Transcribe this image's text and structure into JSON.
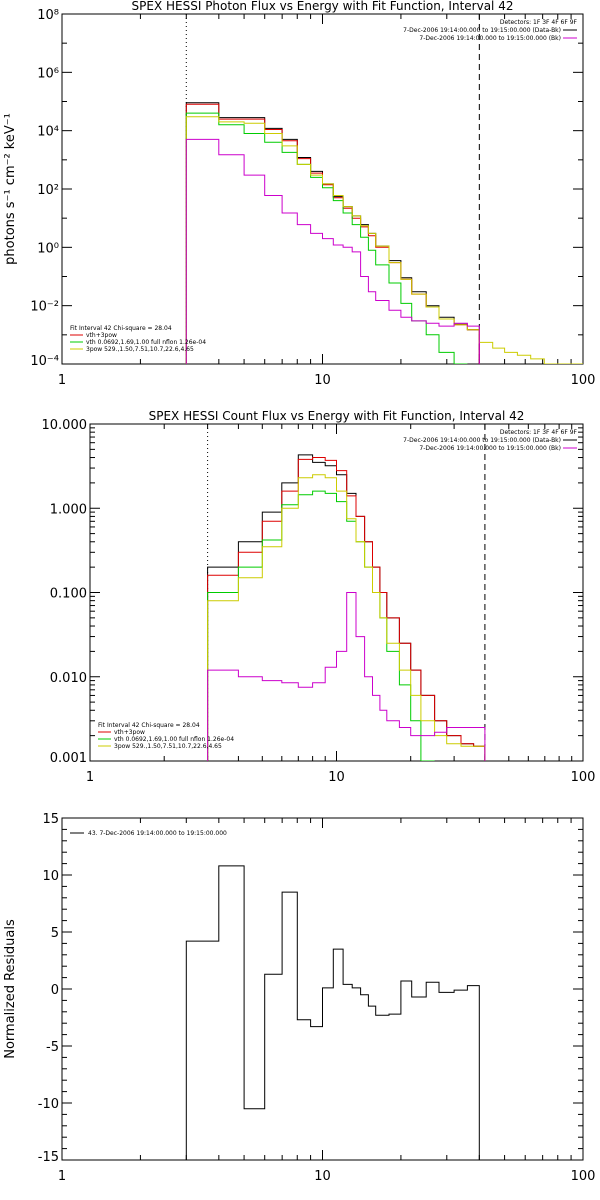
{
  "chart_data": [
    {
      "type": "line",
      "title": "SPEX HESSI Photon Flux vs Energy with Fit Function, Interval 42",
      "ylabel": "photons s⁻¹ cm⁻² keV⁻¹",
      "xscale": "log",
      "yscale": "log",
      "xlim": [
        1,
        100
      ],
      "ylim": [
        0.0001,
        100000000
      ],
      "xticks": [
        1,
        10,
        100
      ],
      "xtick_labels": [
        "1",
        "10",
        "100"
      ],
      "yticks": [
        0.0001,
        0.01,
        1,
        100,
        10000,
        1000000,
        100000000
      ],
      "ytick_labels": [
        "10⁻⁴",
        "10⁻²",
        "10⁰",
        "10²",
        "10⁴",
        "10⁶",
        "10⁸"
      ],
      "vlines": [
        {
          "x": 3.0,
          "style": "dotted"
        },
        {
          "x": 40.0,
          "style": "dashed"
        }
      ],
      "legend_topright": [
        {
          "text": "Detectors: 1F 3F 4F 6F 9F",
          "color": null
        },
        {
          "text": "7-Dec-2006 19:14:00.000 to 19:15:00.000 (Data-Bk)",
          "color": "#000000"
        },
        {
          "text": "7-Dec-2006 19:14:00.000 to 19:15:00.000 (Bk)",
          "color": "#cc00cc"
        }
      ],
      "legend_bottomleft": [
        {
          "text": "Fit Interval 42    Chi-square = 28.04",
          "color": null
        },
        {
          "text": "vth+3pow",
          "color": "#dd0000"
        },
        {
          "text": "vth 0.0692,1.69,1.00  full nflon 1.26e-04",
          "color": "#00cc00"
        },
        {
          "text": "3pow 529.,1.50,7.51,10.7,22.6,4.65",
          "color": "#cccc00"
        }
      ],
      "edges": [
        3.0,
        4.0,
        5.0,
        6.0,
        7.0,
        8.0,
        9.0,
        10.0,
        11.0,
        12.0,
        13.0,
        14.0,
        15.0,
        16.0,
        18.0,
        20.0,
        22.0,
        25.0,
        28.0,
        32.0,
        36.0,
        40.0,
        45.0,
        50.0,
        56.0,
        63.0,
        71.0,
        80.0,
        90.0,
        100.0
      ],
      "series": [
        {
          "color": "#000000",
          "values": [
            90000,
            28000,
            28000,
            12000,
            5000,
            1200,
            400,
            150,
            55,
            25,
            12,
            6,
            3,
            1.1,
            0.35,
            0.09,
            0.03,
            0.01,
            0.004,
            0.0023,
            0.0015
          ]
        },
        {
          "color": "#dd0000",
          "values": [
            80000,
            25000,
            25000,
            11000,
            4500,
            1100,
            350,
            140,
            50,
            22,
            10,
            5,
            2.5,
            1.0,
            0.3,
            0.08,
            0.025,
            0.009,
            0.0035,
            0.0022,
            0.0015
          ]
        },
        {
          "color": "#00cc00",
          "values": [
            40000,
            16000,
            8000,
            4000,
            1800,
            700,
            250,
            110,
            40,
            15,
            6,
            2.2,
            0.8,
            0.25,
            0.06,
            0.012,
            0.003,
            0.001,
            0.00025,
            0.0001,
            null
          ]
        },
        {
          "color": "#cccc00",
          "values": [
            30000,
            20000,
            18000,
            8000,
            3000,
            700,
            300,
            150,
            60,
            25,
            12,
            5.5,
            3,
            1.1,
            0.3,
            0.08,
            0.025,
            0.009,
            0.0035,
            0.0022,
            0.0015,
            0.00055,
            0.00035,
            0.00025,
            0.0002,
            0.00015,
            0.0001,
            8e-05,
            5e-05
          ]
        },
        {
          "color": "#cc00cc",
          "values": [
            5000,
            1500,
            300,
            60,
            15,
            6,
            3,
            2,
            1.2,
            1.0,
            0.7,
            0.1,
            0.03,
            0.015,
            0.007,
            0.004,
            0.003,
            0.0025,
            0.002,
            0.0025,
            0.002
          ]
        }
      ]
    },
    {
      "type": "line",
      "title": "SPEX HESSI Count Flux vs Energy with Fit Function, Interval 42",
      "xscale": "log",
      "yscale": "log",
      "xlim": [
        1,
        100
      ],
      "ylim": [
        0.001,
        10
      ],
      "xticks": [
        1,
        10,
        100
      ],
      "xtick_labels": [
        "1",
        "10",
        "100"
      ],
      "yticks": [
        0.001,
        0.01,
        0.1,
        1,
        10
      ],
      "ytick_labels": [
        "0.001",
        "0.010",
        "0.100",
        "1.000",
        "10.000"
      ],
      "vlines": [
        {
          "x": 3.0,
          "style": "dotted"
        },
        {
          "x": 40.0,
          "style": "dashed"
        }
      ],
      "legend_topright": [
        {
          "text": "Detectors: 1F 3F 4F 6F 9F",
          "color": null
        },
        {
          "text": "7-Dec-2006 19:14:00.000 to 19:15:00.000 (Data-Bk)",
          "color": "#000000"
        },
        {
          "text": "7-Dec-2006 19:14:00.000 to 19:15:00.000 (Bk)",
          "color": "#cc00cc"
        }
      ],
      "legend_bottomleft": [
        {
          "text": "Fit Interval 42    Chi-square = 28.04",
          "color": null
        },
        {
          "text": "vth+3pow",
          "color": "#dd0000"
        },
        {
          "text": "vth 0.0692,1.69,1.00  full nflon 1.26e-04",
          "color": "#00cc00"
        },
        {
          "text": "3pow 529.,1.50,7.51,10.7,22.6,4.65",
          "color": "#cccc00"
        }
      ],
      "edges": [
        3.0,
        4.0,
        5.0,
        6.0,
        7.0,
        8.0,
        9.0,
        10.0,
        11.0,
        12.0,
        13.0,
        14.0,
        15.0,
        16.0,
        18.0,
        20.0,
        22.0,
        25.0,
        28.0,
        32.0,
        36.0,
        40.0
      ],
      "series": [
        {
          "color": "#000000",
          "values": [
            0.2,
            0.4,
            0.9,
            2.0,
            4.3,
            3.5,
            3.2,
            2.5,
            1.5,
            0.8,
            0.4,
            0.2,
            0.1,
            0.05,
            0.025,
            0.012,
            0.006,
            0.003,
            0.002,
            0.0016,
            0.0015
          ]
        },
        {
          "color": "#dd0000",
          "values": [
            0.16,
            0.3,
            0.7,
            1.6,
            3.8,
            4.0,
            3.7,
            2.8,
            1.4,
            0.8,
            0.4,
            0.2,
            0.1,
            0.05,
            0.025,
            0.012,
            0.006,
            0.003,
            0.002,
            0.0016,
            0.0015
          ]
        },
        {
          "color": "#00cc00",
          "values": [
            0.1,
            0.2,
            0.42,
            1.1,
            1.45,
            1.6,
            1.5,
            1.2,
            0.7,
            0.4,
            0.2,
            0.1,
            0.05,
            0.02,
            0.008,
            0.003,
            0.001,
            null,
            null,
            null,
            null
          ]
        },
        {
          "color": "#cccc00",
          "values": [
            0.08,
            0.15,
            0.35,
            1.0,
            2.3,
            2.5,
            2.3,
            1.6,
            0.75,
            0.4,
            0.2,
            0.1,
            0.05,
            0.025,
            0.012,
            0.006,
            0.003,
            0.002,
            0.0016,
            0.0015,
            0.0015
          ]
        },
        {
          "color": "#cc00cc",
          "values": [
            0.012,
            0.01,
            0.009,
            0.0085,
            0.0075,
            0.0085,
            0.013,
            0.02,
            0.1,
            0.03,
            0.01,
            0.006,
            0.004,
            0.003,
            0.0025,
            0.002,
            0.002,
            0.0022,
            0.0025,
            0.0025,
            0.0025
          ]
        }
      ]
    },
    {
      "type": "line",
      "ylabel": "Normalized Residuals",
      "xscale": "log",
      "yscale": "linear",
      "xlim": [
        1,
        100
      ],
      "ylim": [
        -15,
        15
      ],
      "xticks": [
        1,
        10,
        100
      ],
      "xtick_labels": [
        "1",
        "10",
        "100"
      ],
      "yticks": [
        -15,
        -10,
        -5,
        0,
        5,
        10,
        15
      ],
      "ytick_labels": [
        "-15",
        "-10",
        "-5",
        "0",
        "5",
        "10",
        "15"
      ],
      "legend_topleft": [
        {
          "text": "43.  7-Dec-2006 19:14:00.000 to 19:15:00.000",
          "color": "#000000"
        }
      ],
      "edges": [
        3.0,
        4.0,
        5.0,
        6.0,
        7.0,
        8.0,
        9.0,
        10.0,
        11.0,
        12.0,
        13.0,
        14.0,
        15.0,
        16.0,
        18.0,
        20.0,
        22.0,
        25.0,
        28.0,
        32.0,
        36.0,
        40.0
      ],
      "series": [
        {
          "color": "#000000",
          "values": [
            4.2,
            10.8,
            -10.5,
            1.3,
            8.5,
            -2.7,
            -3.3,
            0.1,
            3.5,
            0.4,
            0.1,
            -0.5,
            -1.5,
            -2.3,
            -2.2,
            0.7,
            -0.7,
            0.6,
            -0.3,
            -0.1,
            0.3
          ]
        }
      ]
    }
  ]
}
